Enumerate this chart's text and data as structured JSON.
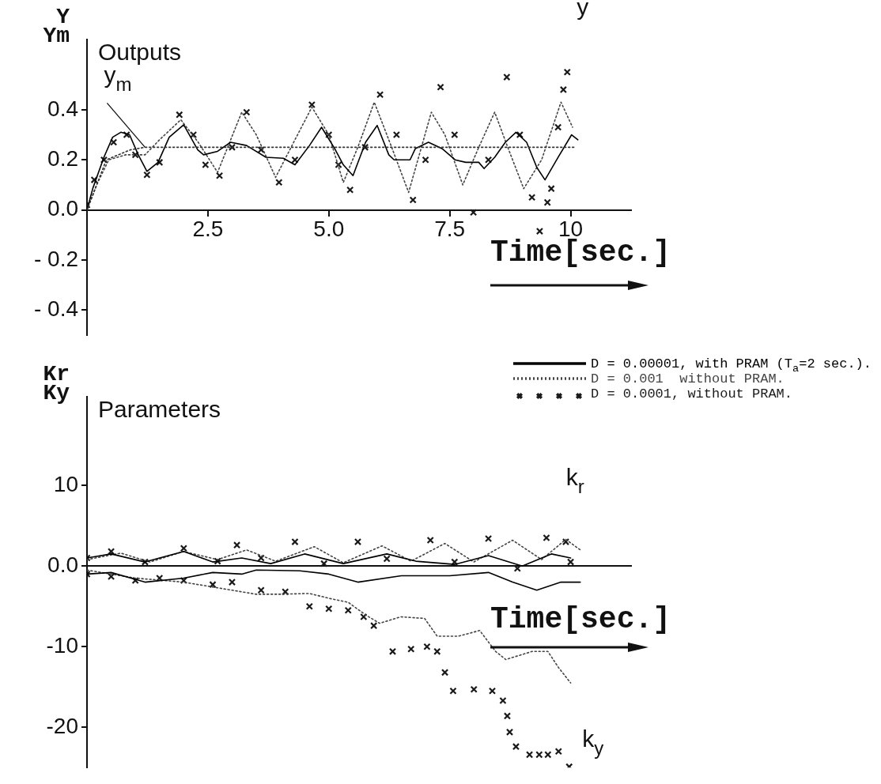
{
  "chart_data": [
    {
      "type": "line",
      "title": "Outputs",
      "xlabel": "Time[sec.]",
      "ylabel": "Y\nYm",
      "xlim": [
        0,
        11.25
      ],
      "ylim": [
        -0.5,
        0.68
      ],
      "xticks": [
        2.5,
        {
          "value": 5,
          "label": "5.0"
        },
        7.5,
        10
      ],
      "yticks": [
        {
          "value": 0.4,
          "label": "0.4"
        },
        0.2,
        {
          "value": 0,
          "label": "0.0"
        },
        {
          "value": -0.2,
          "label": "- 0.2"
        },
        {
          "value": -0.4,
          "label": "- 0.4"
        }
      ],
      "annotations": [
        {
          "text": "y$_{m}$",
          "x": 1.2,
          "y": 0.25
        },
        {
          "text": "y",
          "x": 9.93,
          "y": 0.55
        }
      ],
      "series": [
        {
          "type": "line",
          "line_style": "dotted",
          "color": "#333333",
          "x": [
            0,
            0.2,
            0.4,
            0.9,
            1.2,
            10.1
          ],
          "values": [
            0,
            0.1,
            0.2,
            0.24,
            0.25,
            0.25
          ]
        },
        {
          "type": "line",
          "line_style": "solid",
          "color": "#000000",
          "x": [
            0,
            0.12,
            0.35,
            0.53,
            0.7,
            0.88,
            1.06,
            1.24,
            1.47,
            1.7,
            2.0,
            2.29,
            2.41,
            2.7,
            2.97,
            3.3,
            3.7,
            4.06,
            4.3,
            4.6,
            4.85,
            5.12,
            5.3,
            5.5,
            5.76,
            6.0,
            6.24,
            6.35,
            6.68,
            6.79,
            7.06,
            7.34,
            7.61,
            7.83,
            8.1,
            8.21,
            8.43,
            8.65,
            8.87,
            9.09,
            9.3,
            9.47,
            9.74,
            10.02,
            10.15
          ],
          "values": [
            0,
            0.086,
            0.21,
            0.29,
            0.31,
            0.3,
            0.22,
            0.154,
            0.19,
            0.29,
            0.34,
            0.24,
            0.22,
            0.234,
            0.27,
            0.257,
            0.21,
            0.206,
            0.18,
            0.257,
            0.33,
            0.245,
            0.18,
            0.137,
            0.27,
            0.337,
            0.22,
            0.2,
            0.2,
            0.245,
            0.27,
            0.245,
            0.2,
            0.19,
            0.19,
            0.165,
            0.21,
            0.27,
            0.31,
            0.27,
            0.17,
            0.12,
            0.21,
            0.3,
            0.28
          ]
        },
        {
          "type": "line",
          "line_style": "dotted",
          "color": "#444444",
          "x": [
            0,
            0.2,
            0.45,
            0.8,
            1.2,
            1.5,
            1.94,
            2.3,
            2.7,
            3.2,
            3.5,
            3.9,
            4.3,
            4.65,
            5.0,
            5.3,
            5.6,
            5.94,
            6.3,
            6.65,
            7.12,
            7.4,
            7.77,
            8.1,
            8.43,
            8.7,
            9.03,
            9.4,
            9.8,
            10.04
          ],
          "values": [
            0,
            0.1,
            0.2,
            0.22,
            0.22,
            0.28,
            0.36,
            0.27,
            0.15,
            0.39,
            0.3,
            0.13,
            0.28,
            0.41,
            0.3,
            0.11,
            0.25,
            0.43,
            0.25,
            0.07,
            0.39,
            0.3,
            0.1,
            0.25,
            0.39,
            0.25,
            0.085,
            0.2,
            0.43,
            0.33
          ]
        },
        {
          "type": "scatter",
          "marker": "cross",
          "color": "#1a1a1a",
          "x": [
            0,
            0.15,
            0.35,
            0.55,
            0.82,
            1.0,
            1.24,
            1.5,
            1.91,
            2.2,
            2.45,
            2.74,
            3.0,
            3.3,
            3.6,
            3.97,
            4.3,
            4.65,
            5.0,
            5.2,
            5.44,
            5.75,
            6.06,
            6.4,
            6.74,
            7.0,
            7.31,
            7.6,
            7.99,
            8.3,
            8.68,
            8.95,
            9.2,
            9.36,
            9.52,
            9.6,
            9.74,
            9.85,
            9.93
          ],
          "values": [
            0.02,
            0.12,
            0.2,
            0.27,
            0.3,
            0.22,
            0.14,
            0.19,
            0.38,
            0.3,
            0.18,
            0.137,
            0.25,
            0.39,
            0.24,
            0.11,
            0.2,
            0.42,
            0.3,
            0.18,
            0.08,
            0.25,
            0.46,
            0.3,
            0.04,
            0.2,
            0.49,
            0.3,
            -0.01,
            0.2,
            0.53,
            0.3,
            0.05,
            -0.085,
            0.03,
            0.085,
            0.33,
            0.48,
            0.55
          ]
        }
      ]
    },
    {
      "type": "line",
      "title": "Parameters",
      "xlabel": "Time[sec.]",
      "ylabel": "Kr\nKy",
      "legend": "top right",
      "tick_labels": "y",
      "xlim": [
        0,
        11.25
      ],
      "ylim": [
        -25,
        21
      ],
      "yticks": [
        10,
        {
          "value": 0,
          "label": "0.0"
        },
        -10,
        -20
      ],
      "annotations": [
        {
          "text": "k$_{r}$",
          "x": 10.2,
          "y": 2
        },
        {
          "text": "k$_{y}$",
          "x": 9.75,
          "y": -23
        }
      ],
      "series": [
        {
          "name": "D = 0.00001, with PRAM (T$_{a}$=2 sec.).",
          "type": "line",
          "line_style": "solid",
          "color": "#000000",
          "x": [
            0,
            0.5,
            1.2,
            2.0,
            2.6,
            3.2,
            3.8,
            4.5,
            5.3,
            6.2,
            6.8,
            7.6,
            8.3,
            9.0,
            9.6,
            10.0
          ],
          "values": [
            1.0,
            1.5,
            0.5,
            1.8,
            0.5,
            1.0,
            0.3,
            1.5,
            0.3,
            1.5,
            0.6,
            0.2,
            1.3,
            0.0,
            1.5,
            1.0
          ]
        },
        {
          "name": "D = 0.001  without PRAM.",
          "type": "line",
          "line_style": "dotted",
          "color": "#444444",
          "x": [
            0,
            0.7,
            1.3,
            2.0,
            2.7,
            3.3,
            3.9,
            4.7,
            5.3,
            6.1,
            6.7,
            7.4,
            8.0,
            8.8,
            9.4,
            9.9,
            10.2
          ],
          "values": [
            0.8,
            1.6,
            0.5,
            1.8,
            0.8,
            2.0,
            0.6,
            2.4,
            0.4,
            2.5,
            0.6,
            2.8,
            0.5,
            3.2,
            0.8,
            3.3,
            2.0
          ]
        },
        {
          "name": "D = 0.0001, without PRAM.",
          "type": "scatter",
          "marker": "cross",
          "color": "#1a1a1a",
          "x": [
            0,
            0.5,
            1.2,
            2.0,
            2.7,
            3.1,
            3.6,
            4.3,
            4.9,
            5.6,
            6.2,
            7.1,
            7.6,
            8.3,
            8.9,
            9.5,
            9.9,
            10.0
          ],
          "values": [
            1.0,
            1.8,
            0.5,
            2.2,
            0.6,
            2.6,
            1.0,
            3.0,
            0.3,
            3.0,
            0.9,
            3.2,
            0.5,
            3.4,
            -0.3,
            3.5,
            3.0,
            0.5
          ]
        },
        {
          "type": "line",
          "line_style": "solid",
          "color": "#000000",
          "x": [
            0,
            0.5,
            1.2,
            2.0,
            2.6,
            3.2,
            3.5,
            4.4,
            5.0,
            5.6,
            6.5,
            7.5,
            8.3,
            8.8,
            9.3,
            9.8,
            10.2
          ],
          "values": [
            -1.0,
            -0.8,
            -2.0,
            -1.5,
            -0.8,
            -1.0,
            -0.5,
            -0.6,
            -1.0,
            -2.0,
            -1.2,
            -1.2,
            -0.8,
            -2.0,
            -3.0,
            -2.0,
            -2.0
          ]
        },
        {
          "type": "line",
          "line_style": "dotted",
          "color": "#444444",
          "x": [
            0,
            1,
            2,
            3,
            3.5,
            4,
            4.6,
            5.0,
            5.4,
            5.77,
            6.05,
            6.49,
            6.98,
            7.24,
            7.68,
            8.12,
            8.45,
            8.66,
            9.2,
            9.53,
            9.75,
            10.0
          ],
          "values": [
            -0.5,
            -1.5,
            -2,
            -3,
            -3.5,
            -3.5,
            -3.4,
            -4.0,
            -4.5,
            -6.1,
            -7.1,
            -6.3,
            -6.5,
            -8.7,
            -8.7,
            -8.0,
            -10.6,
            -11.6,
            -10.6,
            -10.6,
            -12.6,
            -14.5
          ]
        },
        {
          "type": "scatter",
          "marker": "cross",
          "color": "#1a1a1a",
          "x": [
            0,
            0.5,
            1.0,
            1.5,
            2.0,
            2.6,
            3.0,
            3.6,
            4.1,
            4.6,
            5.0,
            5.4,
            5.72,
            5.93,
            6.32,
            6.7,
            7.03,
            7.24,
            7.4,
            7.57,
            8.0,
            8.38,
            8.6,
            8.69,
            8.74,
            8.87,
            9.15,
            9.35,
            9.53,
            9.75,
            9.97
          ],
          "values": [
            -1.0,
            -1.3,
            -1.8,
            -1.5,
            -1.8,
            -2.3,
            -2.0,
            -3.0,
            -3.2,
            -5.0,
            -5.3,
            -5.5,
            -6.3,
            -7.4,
            -10.6,
            -10.3,
            -10.0,
            -10.6,
            -13.2,
            -15.5,
            -15.3,
            -15.5,
            -16.7,
            -18.6,
            -20.6,
            -22.4,
            -23.4,
            -23.4,
            -23.4,
            -23.0,
            -24.9
          ]
        }
      ]
    }
  ]
}
